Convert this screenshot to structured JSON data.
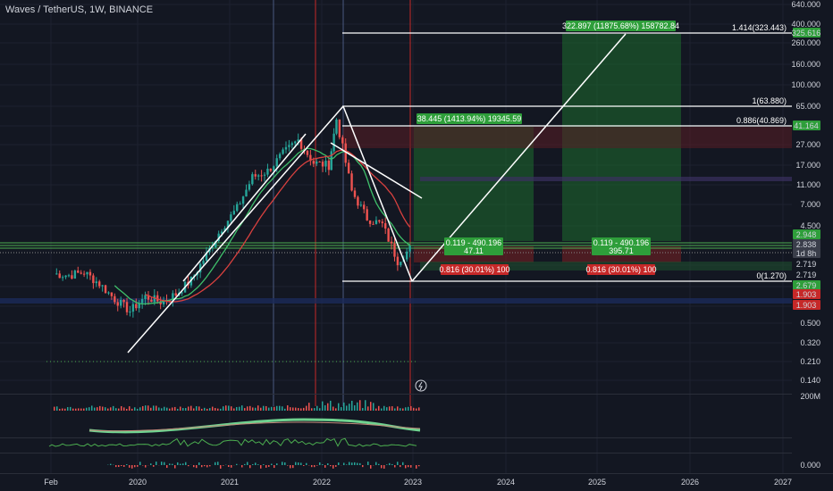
{
  "header": {
    "symbol_title": "Waves / TetherUS, 1W, BINANCE"
  },
  "colors": {
    "background": "#131722",
    "up": "#26a69a",
    "down": "#ef5350",
    "green_zone": "#1e6b2e",
    "red_zone": "#6b1e24",
    "fib": "#ffffff",
    "ma_green": "#3fbf6a",
    "ma_red": "#d9413f"
  },
  "chart_data": {
    "type": "candlestick",
    "title": "Waves / TetherUS, 1W, BINANCE",
    "y_scale": "log",
    "y_ticks": [
      "640.000",
      "400.000",
      "260.000",
      "160.000",
      "100.000",
      "65.000",
      "41.164",
      "27.000",
      "17.000",
      "11.000",
      "7.000",
      "4.500",
      "2.948",
      "2.838",
      "1d 8h",
      "2.719",
      "2.719",
      "2.679",
      "1.903",
      "1.903",
      "0.500",
      "0.320",
      "0.210",
      "0.140",
      "200M",
      "0.000"
    ],
    "x_ticks": [
      "Feb",
      "2020",
      "2021",
      "2022",
      "2023",
      "2024",
      "2025",
      "2026",
      "2027"
    ],
    "price_labels": [
      {
        "text": "325.616",
        "kind": "green"
      },
      {
        "text": "41.164",
        "kind": "green"
      },
      {
        "text": "2.948",
        "kind": "green"
      },
      {
        "text": "2.838",
        "kind": "gray"
      },
      {
        "text": "1d 8h",
        "kind": "gray"
      },
      {
        "text": "2.719",
        "kind": "plain"
      },
      {
        "text": "2.719",
        "kind": "plain"
      },
      {
        "text": "2.679",
        "kind": "green"
      },
      {
        "text": "1.903",
        "kind": "red"
      },
      {
        "text": "1.903",
        "kind": "red"
      }
    ],
    "fib_levels": [
      {
        "text": "1.414(323.443)",
        "value": 323.443
      },
      {
        "text": "1(63.880)",
        "value": 63.88
      },
      {
        "text": "0.886(40.869)",
        "value": 40.869
      },
      {
        "text": "0(1.270)",
        "value": 1.27
      }
    ],
    "annotations": {
      "long_target_1": "322.897 (11875.68%) 158782.84",
      "long_target_2": "38.445 (1413.94%) 19345.59",
      "position_box_1": "0.119 - 490.196",
      "position_box_1_sub": "47.11",
      "position_box_2": "0.119 - 490.196",
      "position_box_2_sub": "395.71",
      "stop_box_1": "0.816 (30.01%) 100",
      "stop_box_2": "0.816 (30.01%) 100"
    },
    "candles_approx": [
      {
        "t": "2019-02",
        "p": 1.5
      },
      {
        "t": "2019-04",
        "p": 1.45
      },
      {
        "t": "2019-06",
        "p": 1.55
      },
      {
        "t": "2019-08",
        "p": 1.2
      },
      {
        "t": "2019-10",
        "p": 0.85
      },
      {
        "t": "2019-12",
        "p": 0.65
      },
      {
        "t": "2020-02",
        "p": 0.9
      },
      {
        "t": "2020-04",
        "p": 0.8
      },
      {
        "t": "2020-06",
        "p": 0.95
      },
      {
        "t": "2020-08",
        "p": 1.3
      },
      {
        "t": "2020-10",
        "p": 2.3
      },
      {
        "t": "2020-12",
        "p": 4.2
      },
      {
        "t": "2021-02",
        "p": 6.5
      },
      {
        "t": "2021-04",
        "p": 13.0
      },
      {
        "t": "2021-06",
        "p": 15.0
      },
      {
        "t": "2021-08",
        "p": 22.0
      },
      {
        "t": "2021-10",
        "p": 30.0
      },
      {
        "t": "2021-12",
        "p": 18.0
      },
      {
        "t": "2022-02",
        "p": 17.0
      },
      {
        "t": "2022-03",
        "p": 48.0
      },
      {
        "t": "2022-05",
        "p": 9.5
      },
      {
        "t": "2022-07",
        "p": 5.2
      },
      {
        "t": "2022-09",
        "p": 4.5
      },
      {
        "t": "2022-11",
        "p": 2.0
      },
      {
        "t": "2023-01",
        "p": 2.8
      }
    ]
  }
}
